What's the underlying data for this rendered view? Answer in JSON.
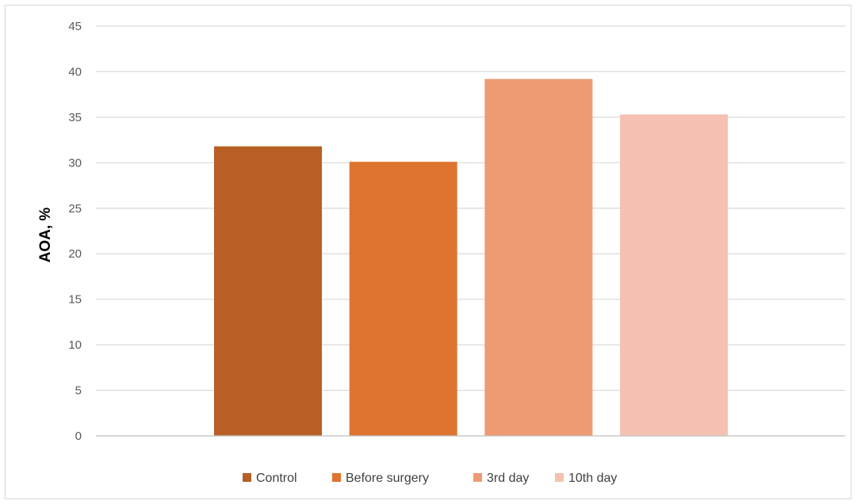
{
  "chart_data": {
    "type": "bar",
    "title": "",
    "xlabel": "",
    "ylabel": "AOA, %",
    "ylim": [
      0,
      45
    ],
    "yticks": [
      0,
      5,
      10,
      15,
      20,
      25,
      30,
      35,
      40,
      45
    ],
    "grid": true,
    "legend_position": "bottom",
    "series": [
      {
        "name": "Control",
        "value": 31.8,
        "color": "#b85f25"
      },
      {
        "name": "Before surgery",
        "value": 30.1,
        "color": "#de742f"
      },
      {
        "name": "3rd day",
        "value": 39.2,
        "color": "#ee9a72"
      },
      {
        "name": "10th day",
        "value": 35.3,
        "color": "#f4c1b2"
      }
    ]
  }
}
